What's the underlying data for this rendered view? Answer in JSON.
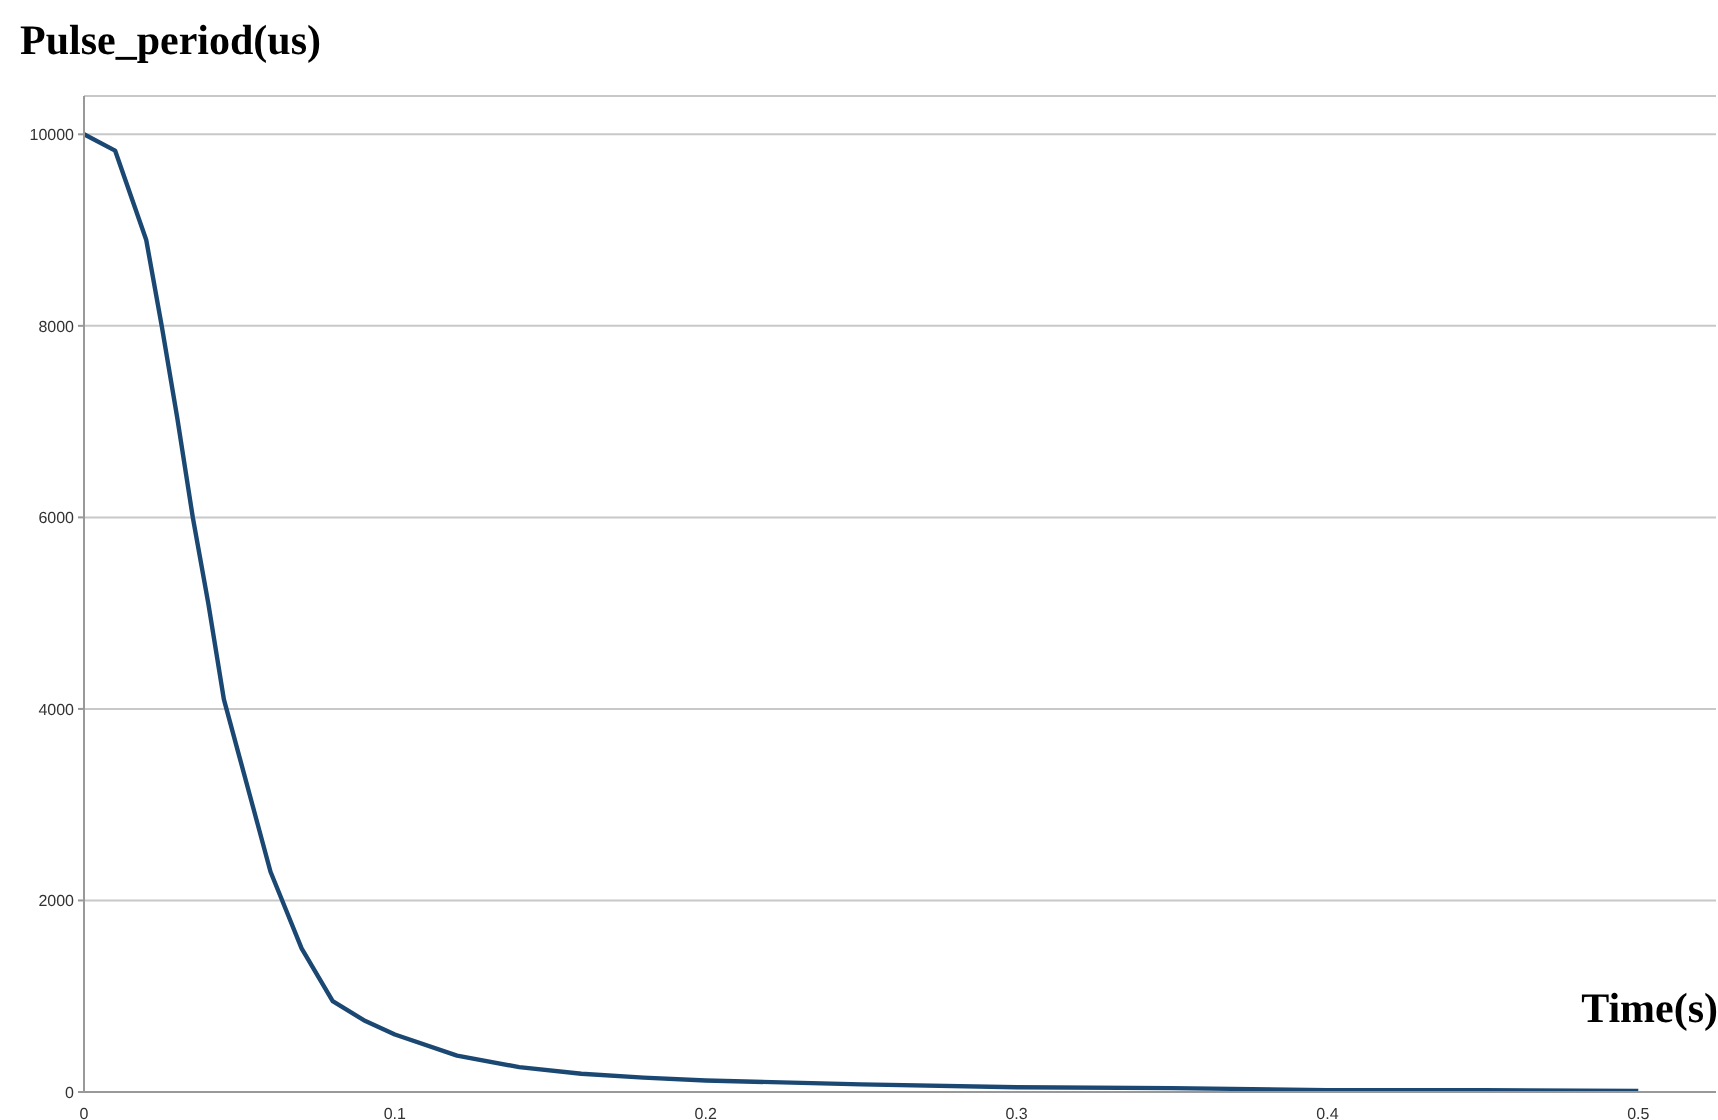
{
  "chart_data": {
    "type": "line",
    "ylabel": "Pulse_period(us)",
    "xlabel": "Time(s)",
    "x": [
      0,
      0.01,
      0.02,
      0.025,
      0.03,
      0.035,
      0.04,
      0.045,
      0.05,
      0.055,
      0.06,
      0.065,
      0.07,
      0.08,
      0.09,
      0.1,
      0.12,
      0.14,
      0.16,
      0.18,
      0.2,
      0.25,
      0.3,
      0.35,
      0.4,
      0.45,
      0.5
    ],
    "series": [
      {
        "color": "#1b4872",
        "values": [
          10000,
          9830,
          8900,
          8000,
          7040,
          6000,
          5100,
          4100,
          3500,
          2900,
          2300,
          1900,
          1500,
          950,
          750,
          600,
          380,
          260,
          190,
          150,
          120,
          80,
          50,
          40,
          20,
          20,
          10
        ]
      }
    ],
    "xlim": [
      0,
      0.525
    ],
    "xticks": [
      0,
      0.1,
      0.2,
      0.3,
      0.4,
      0.5
    ],
    "ylim": [
      0,
      10400
    ],
    "yticks": [
      0,
      2000,
      4000,
      6000,
      8000,
      10000
    ],
    "grid": "y",
    "marker": "none",
    "line_style": "solid"
  }
}
